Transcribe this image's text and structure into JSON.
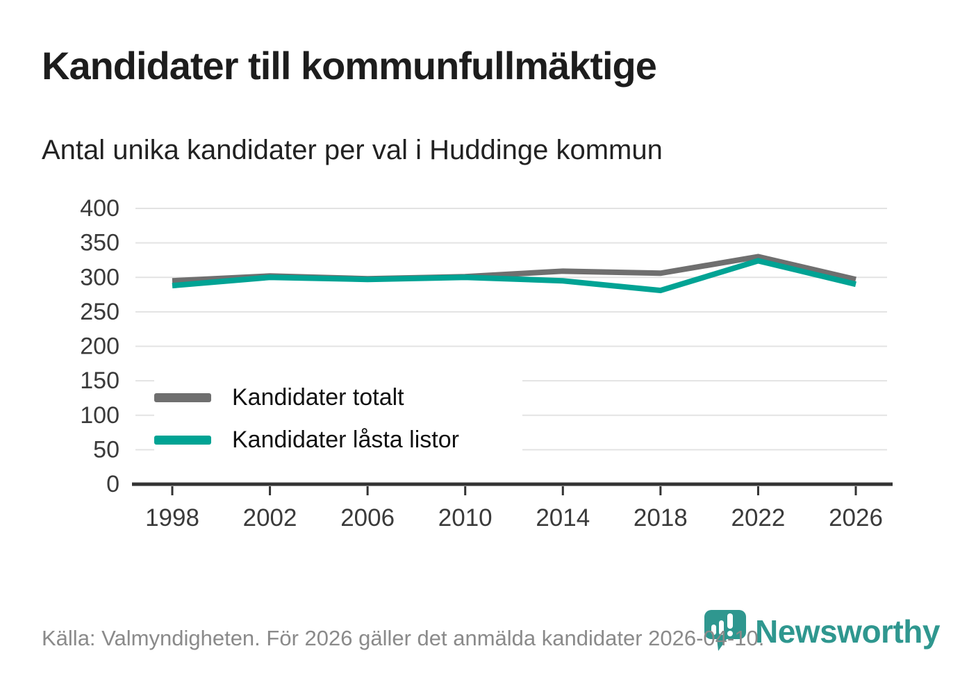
{
  "header": {
    "title": "Kandidater till kommunfullmäktige",
    "subtitle": "Antal unika kandidater per val i Huddinge kommun"
  },
  "chart_data": {
    "type": "line",
    "categories": [
      "1998",
      "2002",
      "2006",
      "2010",
      "2014",
      "2018",
      "2022",
      "2026"
    ],
    "series": [
      {
        "name": "Kandidater totalt",
        "color": "#6f6f6f",
        "values": [
          295,
          302,
          298,
          301,
          309,
          306,
          330,
          297
        ]
      },
      {
        "name": "Kandidater låsta listor",
        "color": "#00a394",
        "values": [
          288,
          300,
          297,
          300,
          295,
          281,
          324,
          290
        ]
      }
    ],
    "title": "Kandidater till kommunfullmäktige",
    "subtitle": "Antal unika kandidater per val i Huddinge kommun",
    "xlabel": "",
    "ylabel": "",
    "ylim": [
      0,
      400
    ],
    "yticks": [
      0,
      50,
      100,
      150,
      200,
      250,
      300,
      350,
      400
    ],
    "grid": true,
    "legend_position": "inside-lower-left"
  },
  "legend": {
    "items": [
      "Kandidater totalt",
      "Kandidater låsta listor"
    ]
  },
  "footer": {
    "source_text": "Källa: Valmyndigheten. För 2026 gäller det anmälda kandidater 2026-04-10."
  },
  "logo": {
    "brand": "Newsworthy"
  },
  "colors": {
    "background": "#ffffff",
    "title_text": "#1d1d1d",
    "subtitle_text": "#222222",
    "grid": "#e3e3e3",
    "axis": "#333333",
    "tick_label": "#3a3a3a",
    "legend_text": "#111111",
    "footer_text": "#8a8a8a",
    "series_total": "#6f6f6f",
    "series_locked": "#00a394",
    "brand_teal": "#2f978f"
  }
}
